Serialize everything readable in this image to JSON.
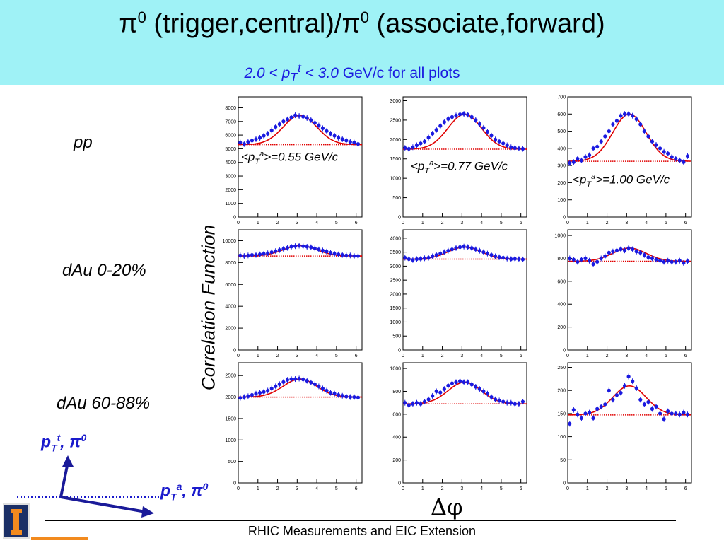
{
  "header": {
    "title_part1": "π",
    "title_sup1": "0",
    "title_part2": " (trigger,central)/π",
    "title_sup2": "0",
    "title_part3": " (associate,forward)",
    "subtitle_italic": "2.0 < p",
    "subtitle_italic_sub": "T",
    "subtitle_italic_sup": "t",
    "subtitle_italic_tail": " < 3.0",
    "subtitle_rest": " GeV/c  for all plots",
    "banner_color": "#9ff2f6"
  },
  "row_labels": [
    "pp",
    "dAu 0-20%",
    "dAu 60-88%"
  ],
  "y_axis_label": "Correlation Function",
  "x_axis_label": "Δφ",
  "annotations": [
    "<pTa>=0.55 GeV/c",
    "<pTa>=0.77 GeV/c",
    "<pTa>=1.00 GeV/c"
  ],
  "diagram": {
    "trigger_label": "pTt, π0",
    "associate_label": "pTa, π0"
  },
  "footer": {
    "text": "RHIC Measurements and EIC Extension"
  },
  "colors": {
    "points": "#1a1ae0",
    "fit": "#e00000",
    "baseline": "#e00000",
    "labels_blue": "#1a1acc"
  },
  "chart_data": [
    {
      "type": "scatter",
      "row": "pp",
      "annotation": "<pTa>=0.55 GeV/c",
      "xlabel": "",
      "ylabel": "",
      "xlim": [
        0,
        6.3
      ],
      "ylim": [
        0,
        8800
      ],
      "yticks": [
        0,
        1000,
        2000,
        3000,
        4000,
        5000,
        6000,
        7000,
        8000
      ],
      "xticks": [
        0,
        1,
        2,
        3,
        4,
        5,
        6
      ],
      "baseline": 5300,
      "peak": 7450,
      "series": [
        {
          "x": [
            0.1,
            0.3,
            0.5,
            0.7,
            0.9,
            1.1,
            1.3,
            1.5,
            1.7,
            1.9,
            2.1,
            2.3,
            2.5,
            2.7,
            2.9,
            3.1,
            3.3,
            3.5,
            3.7,
            3.9,
            4.1,
            4.3,
            4.5,
            4.7,
            4.9,
            5.1,
            5.3,
            5.5,
            5.7,
            5.9,
            6.1
          ],
          "y": [
            5450,
            5350,
            5500,
            5600,
            5700,
            5800,
            5950,
            6100,
            6350,
            6600,
            6800,
            7000,
            7150,
            7300,
            7450,
            7400,
            7350,
            7250,
            7100,
            6900,
            6700,
            6500,
            6300,
            6100,
            5950,
            5800,
            5700,
            5600,
            5500,
            5450,
            5350
          ]
        }
      ]
    },
    {
      "type": "scatter",
      "row": "pp",
      "annotation": "<pTa>=0.77 GeV/c",
      "xlabel": "",
      "ylabel": "",
      "xlim": [
        0,
        6.3
      ],
      "ylim": [
        0,
        3100
      ],
      "yticks": [
        0,
        500,
        1000,
        1500,
        2000,
        2500,
        3000
      ],
      "xticks": [
        0,
        1,
        2,
        3,
        4,
        5,
        6
      ],
      "baseline": 1750,
      "peak": 2650,
      "series": [
        {
          "x": [
            0.1,
            0.3,
            0.5,
            0.7,
            0.9,
            1.1,
            1.3,
            1.5,
            1.7,
            1.9,
            2.1,
            2.3,
            2.5,
            2.7,
            2.9,
            3.1,
            3.3,
            3.5,
            3.7,
            3.9,
            4.1,
            4.3,
            4.5,
            4.7,
            4.9,
            5.1,
            5.3,
            5.5,
            5.7,
            5.9,
            6.1
          ],
          "y": [
            1780,
            1760,
            1800,
            1850,
            1900,
            1950,
            2050,
            2150,
            2250,
            2350,
            2450,
            2530,
            2580,
            2620,
            2650,
            2660,
            2640,
            2580,
            2500,
            2400,
            2300,
            2200,
            2100,
            2000,
            1950,
            1900,
            1850,
            1800,
            1780,
            1770,
            1760
          ]
        }
      ]
    },
    {
      "type": "scatter",
      "row": "pp",
      "annotation": "<pTa>=1.00 GeV/c",
      "xlabel": "",
      "ylabel": "",
      "xlim": [
        0,
        6.3
      ],
      "ylim": [
        0,
        700
      ],
      "yticks": [
        0,
        100,
        200,
        300,
        400,
        500,
        600,
        700
      ],
      "xticks": [
        0,
        1,
        2,
        3,
        4,
        5,
        6
      ],
      "baseline": 325,
      "peak": 600,
      "series": [
        {
          "x": [
            0.1,
            0.3,
            0.5,
            0.7,
            0.9,
            1.1,
            1.3,
            1.5,
            1.7,
            1.9,
            2.1,
            2.3,
            2.5,
            2.7,
            2.9,
            3.1,
            3.3,
            3.5,
            3.7,
            3.9,
            4.1,
            4.3,
            4.5,
            4.7,
            4.9,
            5.1,
            5.3,
            5.5,
            5.7,
            5.9,
            6.1
          ],
          "y": [
            315,
            320,
            340,
            330,
            350,
            360,
            400,
            410,
            440,
            470,
            500,
            540,
            560,
            590,
            600,
            600,
            590,
            570,
            540,
            500,
            470,
            440,
            420,
            400,
            380,
            370,
            350,
            340,
            330,
            320,
            355
          ]
        }
      ]
    },
    {
      "type": "scatter",
      "row": "dAu 0-20%",
      "xlabel": "",
      "ylabel": "",
      "xlim": [
        0,
        6.3
      ],
      "ylim": [
        0,
        11000
      ],
      "yticks": [
        0,
        2000,
        4000,
        6000,
        8000,
        10000
      ],
      "xticks": [
        0,
        1,
        2,
        3,
        4,
        5,
        6
      ],
      "baseline": 8600,
      "peak": 9550,
      "series": [
        {
          "x": [
            0.1,
            0.3,
            0.5,
            0.7,
            0.9,
            1.1,
            1.3,
            1.5,
            1.7,
            1.9,
            2.1,
            2.3,
            2.5,
            2.7,
            2.9,
            3.1,
            3.3,
            3.5,
            3.7,
            3.9,
            4.1,
            4.3,
            4.5,
            4.7,
            4.9,
            5.1,
            5.3,
            5.5,
            5.7,
            5.9,
            6.1
          ],
          "y": [
            8650,
            8600,
            8650,
            8700,
            8700,
            8750,
            8800,
            8850,
            8950,
            9050,
            9150,
            9250,
            9350,
            9450,
            9500,
            9550,
            9500,
            9450,
            9400,
            9300,
            9200,
            9100,
            9000,
            8900,
            8800,
            8750,
            8700,
            8650,
            8650,
            8600,
            8600
          ]
        }
      ]
    },
    {
      "type": "scatter",
      "row": "dAu 0-20%",
      "xlabel": "",
      "ylabel": "",
      "xlim": [
        0,
        6.3
      ],
      "ylim": [
        0,
        4300
      ],
      "yticks": [
        0,
        500,
        1000,
        1500,
        2000,
        2500,
        3000,
        3500,
        4000
      ],
      "xticks": [
        0,
        1,
        2,
        3,
        4,
        5,
        6
      ],
      "baseline": 3250,
      "peak": 3680,
      "series": [
        {
          "x": [
            0.1,
            0.3,
            0.5,
            0.7,
            0.9,
            1.1,
            1.3,
            1.5,
            1.7,
            1.9,
            2.1,
            2.3,
            2.5,
            2.7,
            2.9,
            3.1,
            3.3,
            3.5,
            3.7,
            3.9,
            4.1,
            4.3,
            4.5,
            4.7,
            4.9,
            5.1,
            5.3,
            5.5,
            5.7,
            5.9,
            6.1
          ],
          "y": [
            3300,
            3250,
            3220,
            3250,
            3260,
            3280,
            3300,
            3350,
            3400,
            3450,
            3500,
            3550,
            3600,
            3650,
            3680,
            3700,
            3680,
            3650,
            3600,
            3550,
            3500,
            3450,
            3400,
            3350,
            3320,
            3300,
            3270,
            3250,
            3260,
            3250,
            3240
          ]
        }
      ]
    },
    {
      "type": "scatter",
      "row": "dAu 0-20%",
      "xlabel": "",
      "ylabel": "",
      "xlim": [
        0,
        6.3
      ],
      "ylim": [
        0,
        1050
      ],
      "yticks": [
        0,
        200,
        400,
        600,
        800,
        1000
      ],
      "xticks": [
        0,
        1,
        2,
        3,
        4,
        5,
        6
      ],
      "baseline": 775,
      "peak": 890,
      "series": [
        {
          "x": [
            0.1,
            0.3,
            0.5,
            0.7,
            0.9,
            1.1,
            1.3,
            1.5,
            1.7,
            1.9,
            2.1,
            2.3,
            2.5,
            2.7,
            2.9,
            3.1,
            3.3,
            3.5,
            3.7,
            3.9,
            4.1,
            4.3,
            4.5,
            4.7,
            4.9,
            5.1,
            5.3,
            5.5,
            5.7,
            5.9,
            6.1
          ],
          "y": [
            800,
            790,
            770,
            790,
            800,
            780,
            750,
            770,
            800,
            820,
            850,
            860,
            870,
            880,
            870,
            890,
            880,
            860,
            850,
            830,
            810,
            800,
            790,
            780,
            770,
            780,
            770,
            770,
            780,
            760,
            775
          ]
        }
      ]
    },
    {
      "type": "scatter",
      "row": "dAu 60-88%",
      "xlabel": "",
      "ylabel": "",
      "xlim": [
        0,
        6.3
      ],
      "ylim": [
        0,
        2800
      ],
      "yticks": [
        0,
        500,
        1000,
        1500,
        2000,
        2500
      ],
      "xticks": [
        0,
        1,
        2,
        3,
        4,
        5,
        6
      ],
      "baseline": 2000,
      "peak": 2420,
      "series": [
        {
          "x": [
            0.1,
            0.3,
            0.5,
            0.7,
            0.9,
            1.1,
            1.3,
            1.5,
            1.7,
            1.9,
            2.1,
            2.3,
            2.5,
            2.7,
            2.9,
            3.1,
            3.3,
            3.5,
            3.7,
            3.9,
            4.1,
            4.3,
            4.5,
            4.7,
            4.9,
            5.1,
            5.3,
            5.5,
            5.7,
            5.9,
            6.1
          ],
          "y": [
            1980,
            2000,
            2020,
            2050,
            2080,
            2100,
            2120,
            2150,
            2200,
            2250,
            2300,
            2350,
            2400,
            2420,
            2420,
            2430,
            2410,
            2380,
            2340,
            2300,
            2250,
            2200,
            2150,
            2100,
            2080,
            2050,
            2030,
            2010,
            2000,
            2000,
            1990
          ]
        }
      ]
    },
    {
      "type": "scatter",
      "row": "dAu 60-88%",
      "xlabel": "",
      "ylabel": "",
      "xlim": [
        0,
        6.3
      ],
      "ylim": [
        0,
        1050
      ],
      "yticks": [
        0,
        200,
        400,
        600,
        800,
        1000
      ],
      "xticks": [
        0,
        1,
        2,
        3,
        4,
        5,
        6
      ],
      "baseline": 690,
      "peak": 880,
      "series": [
        {
          "x": [
            0.1,
            0.3,
            0.5,
            0.7,
            0.9,
            1.1,
            1.3,
            1.5,
            1.7,
            1.9,
            2.1,
            2.3,
            2.5,
            2.7,
            2.9,
            3.1,
            3.3,
            3.5,
            3.7,
            3.9,
            4.1,
            4.3,
            4.5,
            4.7,
            4.9,
            5.1,
            5.3,
            5.5,
            5.7,
            5.9,
            6.1
          ],
          "y": [
            700,
            680,
            690,
            700,
            690,
            710,
            730,
            760,
            800,
            790,
            820,
            850,
            870,
            880,
            890,
            880,
            880,
            860,
            840,
            820,
            800,
            780,
            750,
            730,
            720,
            710,
            700,
            700,
            690,
            690,
            710
          ]
        }
      ]
    },
    {
      "type": "scatter",
      "row": "dAu 60-88%",
      "xlabel": "",
      "ylabel": "",
      "xlim": [
        0,
        6.3
      ],
      "ylim": [
        0,
        260
      ],
      "yticks": [
        0,
        50,
        100,
        150,
        200,
        250
      ],
      "xticks": [
        0,
        1,
        2,
        3,
        4,
        5,
        6
      ],
      "baseline": 147,
      "peak": 210,
      "series": [
        {
          "x": [
            0.1,
            0.3,
            0.5,
            0.7,
            0.9,
            1.1,
            1.3,
            1.5,
            1.7,
            1.9,
            2.1,
            2.3,
            2.5,
            2.7,
            2.9,
            3.1,
            3.3,
            3.5,
            3.7,
            3.9,
            4.1,
            4.3,
            4.5,
            4.7,
            4.9,
            5.1,
            5.3,
            5.5,
            5.7,
            5.9,
            6.1
          ],
          "y": [
            128,
            158,
            148,
            140,
            150,
            152,
            140,
            160,
            165,
            170,
            200,
            180,
            190,
            195,
            210,
            230,
            220,
            205,
            180,
            170,
            175,
            160,
            165,
            150,
            138,
            155,
            150,
            150,
            148,
            152,
            148
          ]
        }
      ]
    }
  ]
}
